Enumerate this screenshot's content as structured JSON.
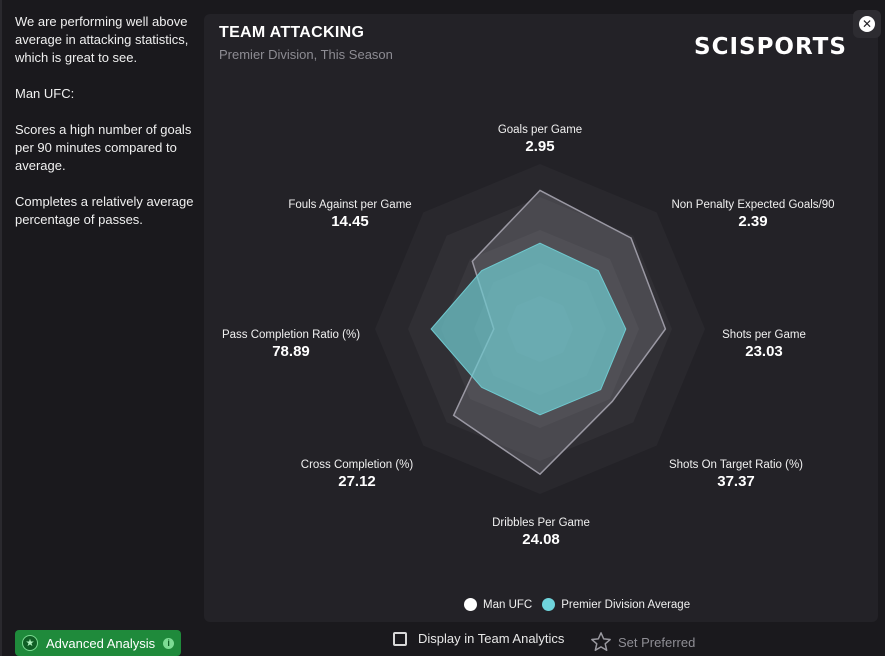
{
  "sidebar": {
    "paragraphs": [
      "We are performing well above average in attacking statistics, which is great to see.",
      "Man UFC:",
      "Scores a high number of goals per 90 minutes compared to average.",
      "Completes a relatively average percentage of passes."
    ],
    "advanced_button": "Advanced Analysis"
  },
  "card": {
    "title": "TEAM ATTACKING",
    "subtitle": "Premier Division, This Season",
    "brand": "SCISPORTS"
  },
  "metrics": [
    {
      "label": "Goals per Game",
      "value": "2.95"
    },
    {
      "label": "Non Penalty Expected Goals/90",
      "value": "2.39"
    },
    {
      "label": "Shots per Game",
      "value": "23.03"
    },
    {
      "label": "Shots On Target Ratio (%)",
      "value": "37.37"
    },
    {
      "label": "Dribbles Per Game",
      "value": "24.08"
    },
    {
      "label": "Cross Completion (%)",
      "value": "27.12"
    },
    {
      "label": "Pass Completion Ratio (%)",
      "value": "78.89"
    },
    {
      "label": "Fouls Against per Game",
      "value": "14.45"
    }
  ],
  "radar": {
    "team_ratios": [
      0.84,
      0.78,
      0.76,
      0.62,
      0.88,
      0.74,
      0.28,
      0.58
    ],
    "average_ratios": [
      0.52,
      0.5,
      0.52,
      0.52,
      0.52,
      0.5,
      0.66,
      0.5
    ],
    "team_color": "#9a98a3",
    "average_color": "#6fc9cf"
  },
  "legend": {
    "team": "Man UFC",
    "average": "Premier Division Average",
    "team_dot_color": "#ffffff",
    "average_dot_color": "#6fd4dc"
  },
  "footer": {
    "display_label": "Display in Team Analytics",
    "preferred_label": "Set Preferred"
  },
  "icons": {
    "close": "close-icon",
    "star": "star-icon",
    "info": "info-icon",
    "analysis": "analysis-icon"
  }
}
